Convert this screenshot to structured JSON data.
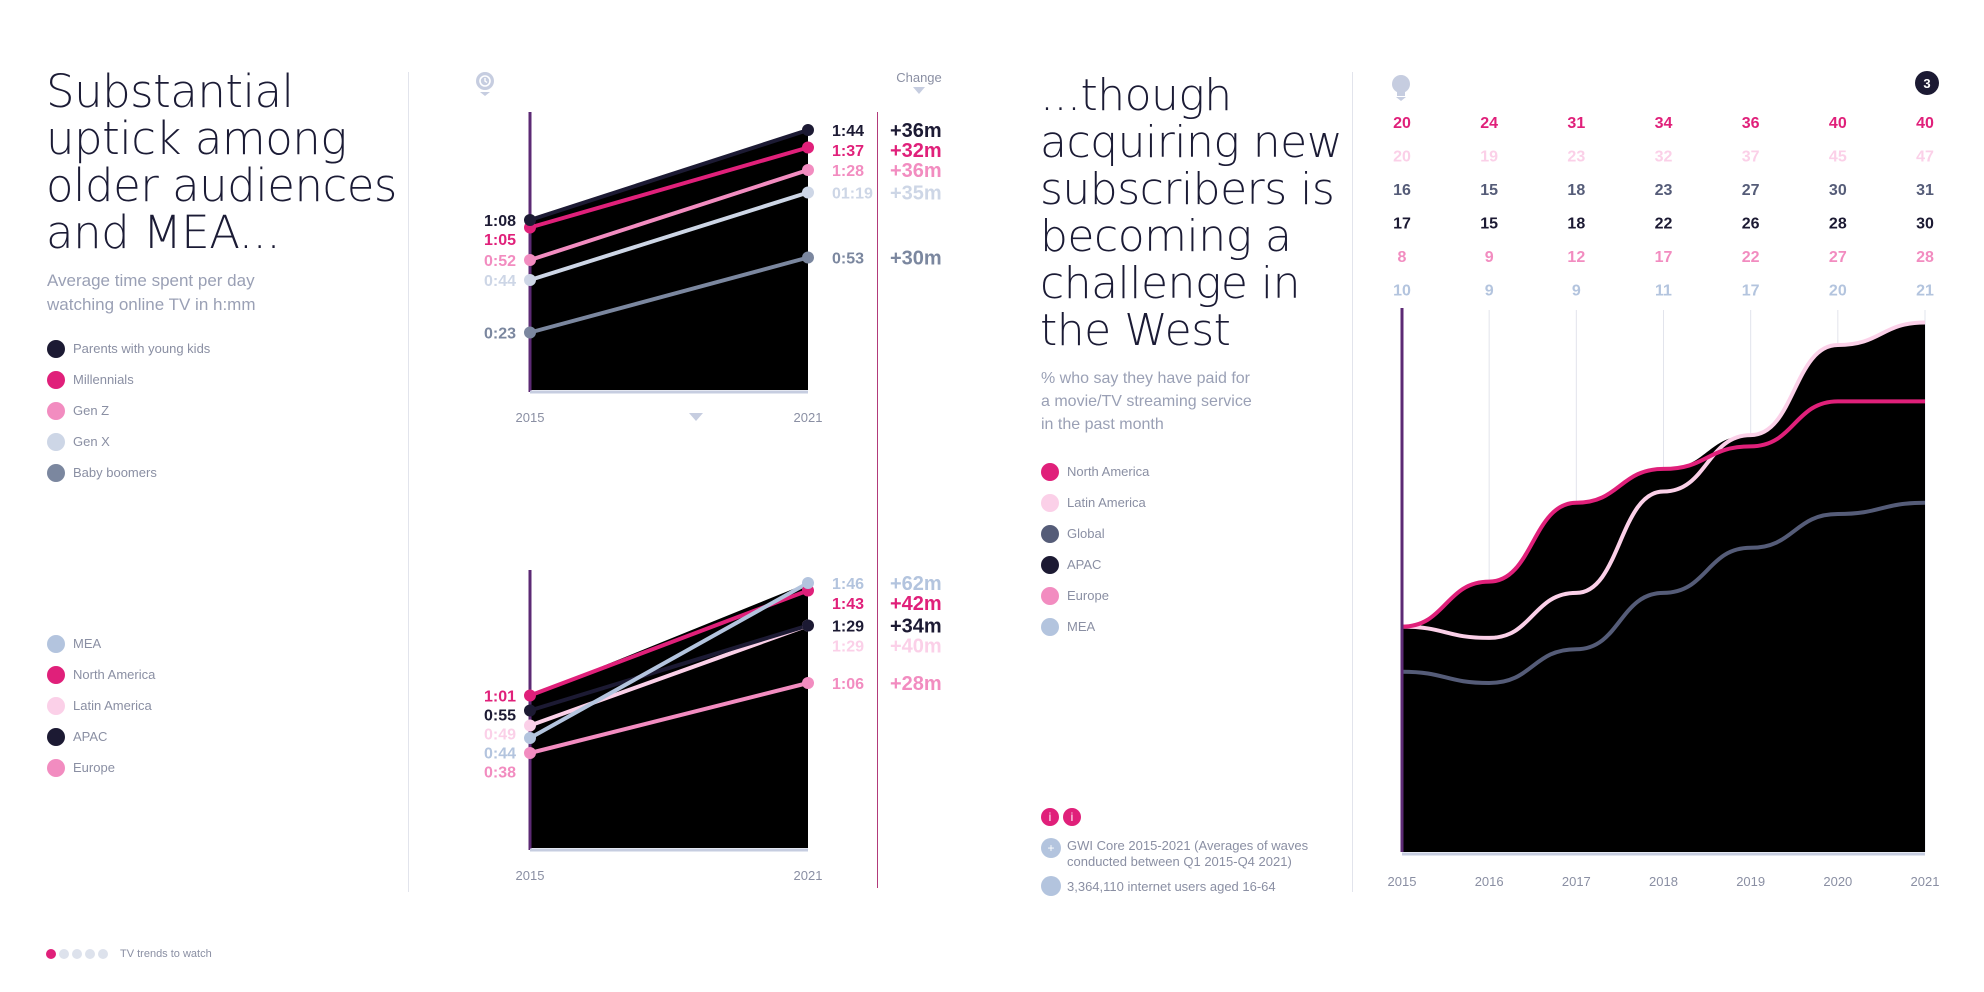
{
  "left": {
    "headline": [
      "Substantial",
      "uptick among",
      "older audiences",
      "and MEA..."
    ],
    "subtitle": [
      "Average time spent per day",
      "watching online TV in h:mm"
    ],
    "legend_top": [
      {
        "label": "Parents with young kids",
        "color": "#1c1a33"
      },
      {
        "label": "Millennials",
        "color": "#e0207a"
      },
      {
        "label": "Gen Z",
        "color": "#f28cc0"
      },
      {
        "label": "Gen X",
        "color": "#cdd6e6"
      },
      {
        "label": "Baby boomers",
        "color": "#7b879f"
      }
    ],
    "legend_bottom": [
      {
        "label": "MEA",
        "color": "#b3c4de"
      },
      {
        "label": "North America",
        "color": "#e0207a"
      },
      {
        "label": "Latin America",
        "color": "#fbd0e8"
      },
      {
        "label": "APAC",
        "color": "#1c1a33"
      },
      {
        "label": "Europe",
        "color": "#f28cc0"
      }
    ]
  },
  "middle": {
    "change_header": "Change"
  },
  "right": {
    "headline": [
      "...though",
      "acquiring new",
      "subscribers is",
      "becoming a",
      "challenge in",
      "the West"
    ],
    "subtitle": [
      "% who say they have paid for",
      "a movie/TV streaming service",
      "in the past month"
    ],
    "legend": [
      {
        "label": "North America",
        "color": "#e0207a"
      },
      {
        "label": "Latin America",
        "color": "#fbd0e8"
      },
      {
        "label": "Global",
        "color": "#555c78"
      },
      {
        "label": "APAC",
        "color": "#1c1a33"
      },
      {
        "label": "Europe",
        "color": "#f28cc0"
      },
      {
        "label": "MEA",
        "color": "#b3c4de"
      }
    ],
    "badge": "3",
    "sources": [
      "GWI Core 2015-2021 (Averages of waves conducted between Q1 2015-Q4 2021)",
      "3,364,110 internet users aged 16-64"
    ]
  },
  "footer": {
    "label": "TV trends to watch",
    "dot_colors": [
      "#e0207a",
      "#dde2ec",
      "#dde2ec",
      "#dde2ec",
      "#dde2ec"
    ]
  },
  "chart_data": [
    {
      "type": "line",
      "x": [
        "2015",
        "2021"
      ],
      "series": [
        {
          "name": "Parents with young kids",
          "color": "#1c1a33",
          "values": [
            "1:08",
            "1:44"
          ],
          "change": "+36m"
        },
        {
          "name": "Millennials",
          "color": "#e0207a",
          "values": [
            "1:05",
            "1:37"
          ],
          "change": "+32m"
        },
        {
          "name": "Gen Z",
          "color": "#f28cc0",
          "values": [
            "0:52",
            "1:28"
          ],
          "change": "+36m"
        },
        {
          "name": "Gen X",
          "color": "#cdd6e6",
          "values": [
            "0:44",
            "01:19"
          ],
          "change": "+35m"
        },
        {
          "name": "Baby boomers",
          "color": "#7b879f",
          "values": [
            "0:23",
            "0:53"
          ],
          "change": "+30m"
        }
      ]
    },
    {
      "type": "line",
      "x": [
        "2015",
        "2021"
      ],
      "series": [
        {
          "name": "MEA",
          "color": "#b3c4de",
          "values": [
            "0:44",
            "1:46"
          ],
          "change": "+62m"
        },
        {
          "name": "North America",
          "color": "#e0207a",
          "values": [
            "1:01",
            "1:43"
          ],
          "change": "+42m"
        },
        {
          "name": "APAC",
          "color": "#1c1a33",
          "values": [
            "0:55",
            "1:29"
          ],
          "change": "+34m"
        },
        {
          "name": "Latin America",
          "color": "#fbd0e8",
          "values": [
            "0:49",
            "1:29"
          ],
          "change": "+40m"
        },
        {
          "name": "Europe",
          "color": "#f28cc0",
          "values": [
            "0:38",
            "1:06"
          ],
          "change": "+28m"
        }
      ]
    },
    {
      "type": "area",
      "x": [
        "2015",
        "2016",
        "2017",
        "2018",
        "2019",
        "2020",
        "2021"
      ],
      "ylim": [
        0,
        45
      ],
      "series": [
        {
          "name": "North America",
          "color": "#e0207a",
          "values": [
            20,
            24,
            31,
            34,
            36,
            40,
            40
          ]
        },
        {
          "name": "Latin America",
          "color": "#fbd0e8",
          "values": [
            20,
            19,
            23,
            32,
            37,
            45,
            47
          ]
        },
        {
          "name": "Global",
          "color": "#555c78",
          "values": [
            16,
            15,
            18,
            23,
            27,
            30,
            31
          ]
        },
        {
          "name": "APAC",
          "color": "#1c1a33",
          "values": [
            17,
            15,
            18,
            22,
            26,
            28,
            30
          ]
        },
        {
          "name": "Europe",
          "color": "#f28cc0",
          "values": [
            8,
            9,
            12,
            17,
            22,
            27,
            28
          ]
        },
        {
          "name": "MEA",
          "color": "#b3c4de",
          "values": [
            10,
            9,
            9,
            11,
            17,
            20,
            21
          ]
        }
      ]
    }
  ]
}
